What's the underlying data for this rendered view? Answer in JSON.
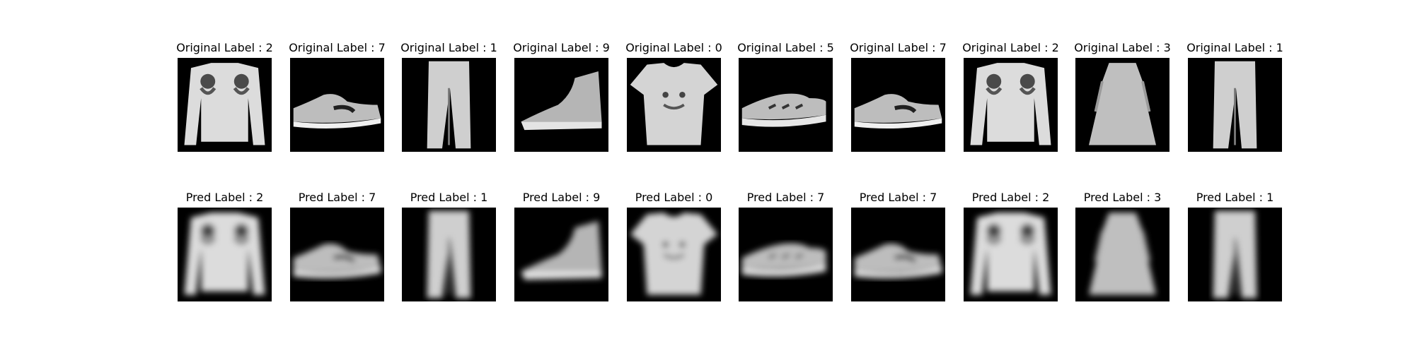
{
  "figure": {
    "rows": [
      {
        "name": "original",
        "items": [
          {
            "title": "Original Label : 2",
            "icon": "pullover-image"
          },
          {
            "title": "Original Label : 7",
            "icon": "sneaker-image"
          },
          {
            "title": "Original Label : 1",
            "icon": "trouser-image"
          },
          {
            "title": "Original Label : 9",
            "icon": "ankle-boot-image"
          },
          {
            "title": "Original Label : 0",
            "icon": "tshirt-image"
          },
          {
            "title": "Original Label : 5",
            "icon": "sandal-image"
          },
          {
            "title": "Original Label : 7",
            "icon": "sneaker-image"
          },
          {
            "title": "Original Label : 2",
            "icon": "pullover-image"
          },
          {
            "title": "Original Label : 3",
            "icon": "dress-image"
          },
          {
            "title": "Original Label : 1",
            "icon": "trouser-image"
          }
        ]
      },
      {
        "name": "predicted",
        "items": [
          {
            "title": "Pred Label : 2",
            "icon": "blurry-pullover-image"
          },
          {
            "title": "Pred Label : 7",
            "icon": "blurry-sneaker-image"
          },
          {
            "title": "Pred Label : 1",
            "icon": "blurry-trouser-image"
          },
          {
            "title": "Pred Label : 9",
            "icon": "blurry-ankle-boot-image"
          },
          {
            "title": "Pred Label : 0",
            "icon": "blurry-tshirt-image"
          },
          {
            "title": "Pred Label : 7",
            "icon": "blurry-sandal-image"
          },
          {
            "title": "Pred Label : 7",
            "icon": "blurry-sneaker-image"
          },
          {
            "title": "Pred Label : 2",
            "icon": "blurry-pullover-image"
          },
          {
            "title": "Pred Label : 3",
            "icon": "blurry-dress-image"
          },
          {
            "title": "Pred Label : 1",
            "icon": "blurry-trouser-image"
          }
        ]
      }
    ],
    "colors": {
      "background": "#ffffff",
      "image_bg": "#000000",
      "garment": "#d9d9d9"
    }
  }
}
